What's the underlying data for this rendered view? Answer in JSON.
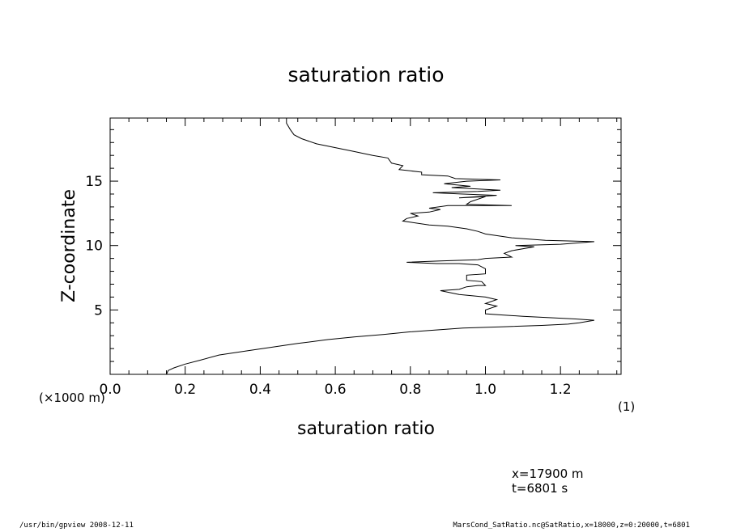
{
  "chart_data": {
    "type": "line",
    "title": "saturation ratio",
    "xlabel": "saturation ratio",
    "ylabel": "Z-coordinate",
    "x_unit_label": "(1)",
    "y_unit_label": "(×1000 m)",
    "xlim": [
      0.0,
      1.3614
    ],
    "ylim": [
      0.0,
      19.9
    ],
    "xticks_major": [
      0.0,
      0.2,
      0.4,
      0.6,
      0.8,
      1.0,
      1.2
    ],
    "xtick_labels": [
      "0.0",
      "0.2",
      "0.4",
      "0.6",
      "0.8",
      "1.0",
      "1.2"
    ],
    "yticks_major": [
      5,
      10,
      15
    ],
    "ytick_labels": [
      "5",
      "10",
      "15"
    ],
    "grid": false,
    "legend": "none",
    "series": [
      {
        "points": [
          [
            0.15,
            0.0
          ],
          [
            0.155,
            0.3
          ],
          [
            0.17,
            0.5
          ],
          [
            0.2,
            0.8
          ],
          [
            0.24,
            1.1
          ],
          [
            0.29,
            1.5
          ],
          [
            0.36,
            1.8
          ],
          [
            0.43,
            2.1
          ],
          [
            0.5,
            2.4
          ],
          [
            0.58,
            2.7
          ],
          [
            0.65,
            2.9
          ],
          [
            0.73,
            3.1
          ],
          [
            0.8,
            3.3
          ],
          [
            0.85,
            3.4
          ],
          [
            0.94,
            3.6
          ],
          [
            1.05,
            3.7
          ],
          [
            1.15,
            3.8
          ],
          [
            1.22,
            3.9
          ],
          [
            1.25,
            4.0
          ],
          [
            1.29,
            4.2
          ],
          [
            1.24,
            4.3
          ],
          [
            1.17,
            4.4
          ],
          [
            1.1,
            4.5
          ],
          [
            1.05,
            4.6
          ],
          [
            1.0,
            4.7
          ],
          [
            1.0,
            5.0
          ],
          [
            1.03,
            5.3
          ],
          [
            1.0,
            5.5
          ],
          [
            1.03,
            5.8
          ],
          [
            1.0,
            6.0
          ],
          [
            0.93,
            6.2
          ],
          [
            0.88,
            6.5
          ],
          [
            0.93,
            6.6
          ],
          [
            0.95,
            6.8
          ],
          [
            0.98,
            6.9
          ],
          [
            1.0,
            6.9
          ],
          [
            0.99,
            7.2
          ],
          [
            0.95,
            7.3
          ],
          [
            0.95,
            7.7
          ],
          [
            1.0,
            7.8
          ],
          [
            1.0,
            8.2
          ],
          [
            0.98,
            8.5
          ],
          [
            0.93,
            8.6
          ],
          [
            0.87,
            8.6
          ],
          [
            0.79,
            8.7
          ],
          [
            0.88,
            8.8
          ],
          [
            0.98,
            8.9
          ],
          [
            1.0,
            9.0
          ],
          [
            1.07,
            9.1
          ],
          [
            1.05,
            9.4
          ],
          [
            1.07,
            9.6
          ],
          [
            1.13,
            9.9
          ],
          [
            1.08,
            10.0
          ],
          [
            1.2,
            10.1
          ],
          [
            1.29,
            10.3
          ],
          [
            1.16,
            10.4
          ],
          [
            1.07,
            10.6
          ],
          [
            1.0,
            10.9
          ],
          [
            0.98,
            11.1
          ],
          [
            0.95,
            11.3
          ],
          [
            0.9,
            11.5
          ],
          [
            0.85,
            11.6
          ],
          [
            0.78,
            11.9
          ],
          [
            0.79,
            12.1
          ],
          [
            0.82,
            12.3
          ],
          [
            0.8,
            12.5
          ],
          [
            0.85,
            12.6
          ],
          [
            0.88,
            12.8
          ],
          [
            0.85,
            12.9
          ],
          [
            0.9,
            13.1
          ],
          [
            1.07,
            13.1
          ],
          [
            0.95,
            13.2
          ],
          [
            0.96,
            13.4
          ],
          [
            1.0,
            13.8
          ],
          [
            0.93,
            13.7
          ],
          [
            1.03,
            13.9
          ],
          [
            0.94,
            14.0
          ],
          [
            0.86,
            14.1
          ],
          [
            0.98,
            14.2
          ],
          [
            1.04,
            14.3
          ],
          [
            0.91,
            14.5
          ],
          [
            0.96,
            14.6
          ],
          [
            0.89,
            14.8
          ],
          [
            0.95,
            15.0
          ],
          [
            1.04,
            15.1
          ],
          [
            0.92,
            15.2
          ],
          [
            0.9,
            15.4
          ],
          [
            0.83,
            15.5
          ],
          [
            0.83,
            15.7
          ],
          [
            0.77,
            15.9
          ],
          [
            0.78,
            16.2
          ],
          [
            0.75,
            16.4
          ],
          [
            0.74,
            16.8
          ],
          [
            0.7,
            17.0
          ],
          [
            0.65,
            17.3
          ],
          [
            0.6,
            17.6
          ],
          [
            0.55,
            17.9
          ],
          [
            0.51,
            18.3
          ],
          [
            0.49,
            18.6
          ],
          [
            0.48,
            19.0
          ],
          [
            0.47,
            19.5
          ],
          [
            0.47,
            19.9
          ]
        ]
      }
    ]
  },
  "annotations": {
    "coord_x": "x=17900  m",
    "coord_t": "t=6801  s",
    "footer_left": "/usr/bin/gpview   2008-12-11",
    "footer_right": "MarsCond_SatRatio.nc@SatRatio,x=18000,z=0:20000,t=6801"
  }
}
